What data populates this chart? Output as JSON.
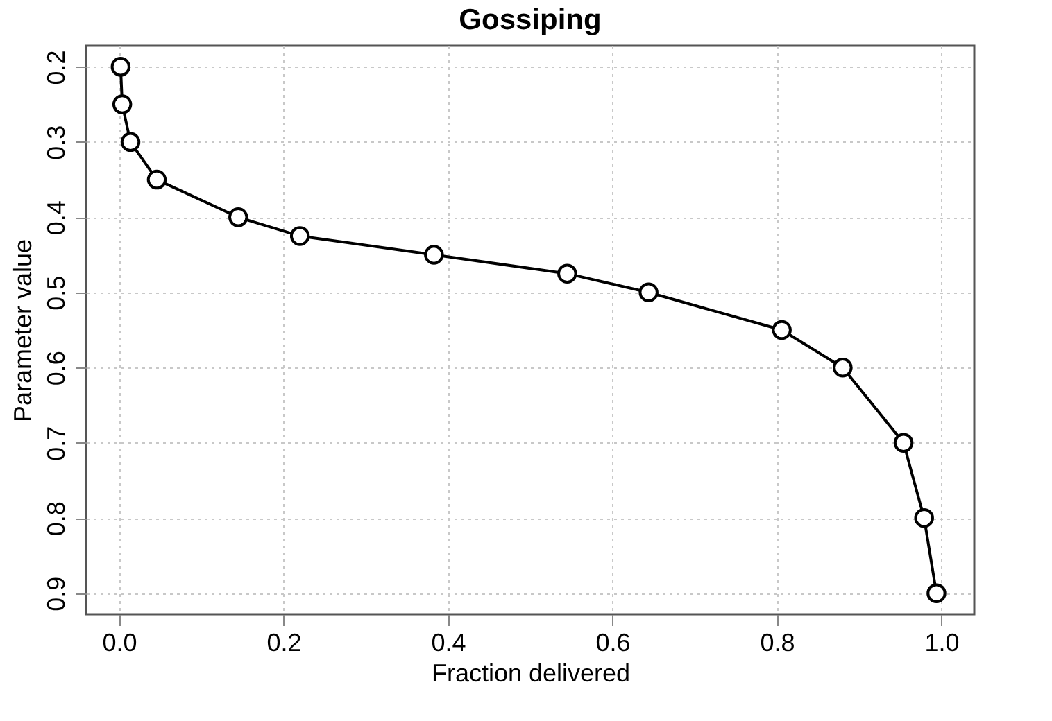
{
  "chart_data": {
    "type": "line",
    "title": "Gossiping",
    "xlabel": "Fraction delivered",
    "ylabel": "Parameter value",
    "x": [
      0.002,
      0.004,
      0.014,
      0.046,
      0.145,
      0.22,
      0.383,
      0.545,
      0.644,
      0.806,
      0.88,
      0.954,
      0.979,
      0.994
    ],
    "series": [
      {
        "color": "#000000",
        "values": [
          0.2,
          0.25,
          0.3,
          0.35,
          0.4,
          0.425,
          0.45,
          0.475,
          0.5,
          0.55,
          0.6,
          0.7,
          0.8,
          0.9
        ]
      }
    ],
    "xlim": [
      -0.04,
      1.04
    ],
    "xticks": [
      {
        "value": 0,
        "label": "0.0"
      },
      0.2,
      0.4,
      0.6,
      0.8,
      {
        "value": 1,
        "label": "1.0"
      }
    ],
    "ylim": [
      0.928,
      0.172
    ],
    "yticks": [
      0.2,
      0.3,
      0.4,
      0.5,
      0.6,
      0.7,
      0.8,
      0.9
    ],
    "grid": true,
    "marker": "circle",
    "line_style": "solid",
    "legend": false
  }
}
